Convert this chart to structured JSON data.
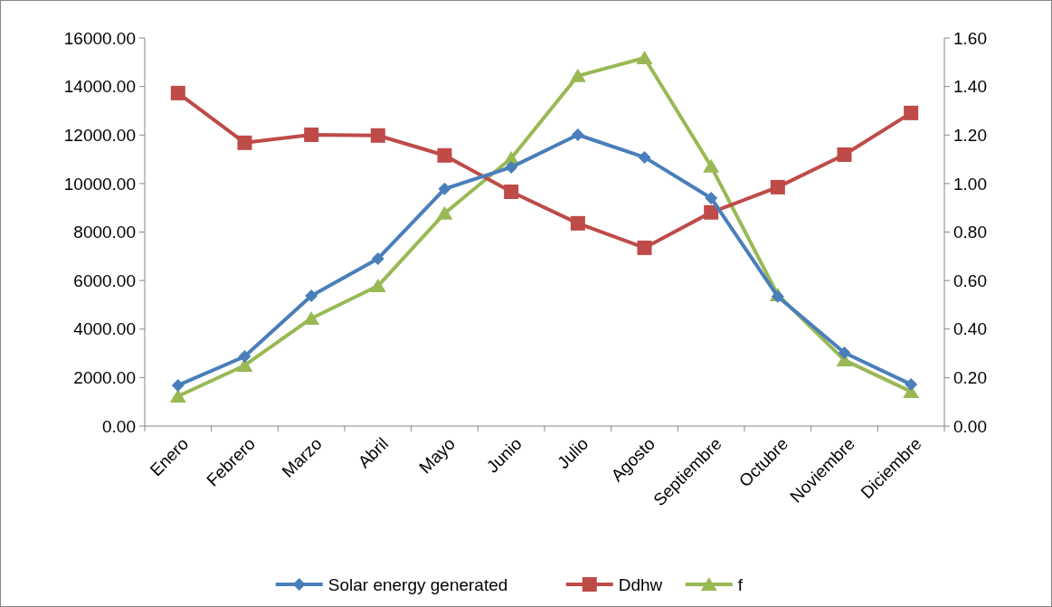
{
  "chart_data": {
    "type": "line",
    "categories": [
      "Enero",
      "Febrero",
      "Marzo",
      "Abril",
      "Mayo",
      "Junio",
      "Julio",
      "Agosto",
      "Septiembre",
      "Octubre",
      "Noviembre",
      "Diciembre"
    ],
    "series": [
      {
        "name": "Solar energy generated",
        "color": "#4a7ebb",
        "marker": "diamond",
        "values": [
          1680,
          2870,
          5370,
          6900,
          9780,
          10670,
          12010,
          11080,
          9400,
          5340,
          3020,
          1720
        ]
      },
      {
        "name": "Ddhw",
        "color": "#be4b48",
        "marker": "square",
        "values": [
          13730,
          11680,
          12010,
          11980,
          11160,
          9660,
          8360,
          7350,
          8810,
          9850,
          11190,
          12910
        ]
      },
      {
        "name": "f",
        "color": "#98b954",
        "marker": "triangle",
        "axis": "y2",
        "values": [
          0.123,
          0.25,
          0.444,
          0.578,
          0.877,
          1.104,
          1.444,
          1.518,
          1.071,
          0.541,
          0.272,
          0.142
        ]
      }
    ],
    "ylim": [
      0,
      16000
    ],
    "yticks": [
      {
        "value": 0,
        "label": "0.00"
      },
      {
        "value": 2000,
        "label": "2000.00"
      },
      {
        "value": 4000,
        "label": "4000.00"
      },
      {
        "value": 6000,
        "label": "6000.00"
      },
      {
        "value": 8000,
        "label": "8000.00"
      },
      {
        "value": 10000,
        "label": "10000.00"
      },
      {
        "value": 12000,
        "label": "12000.00"
      },
      {
        "value": 14000,
        "label": "14000.00"
      },
      {
        "value": 16000,
        "label": "16000.00"
      }
    ],
    "y2lim": [
      0,
      1.6
    ],
    "y2ticks": [
      {
        "value": 0,
        "label": "0.00"
      },
      {
        "value": 0.2,
        "label": "0.20"
      },
      {
        "value": 0.4,
        "label": "0.40"
      },
      {
        "value": 0.6,
        "label": "0.60"
      },
      {
        "value": 0.8,
        "label": "0.80"
      },
      {
        "value": 1,
        "label": "1.00"
      },
      {
        "value": 1.2,
        "label": "1.20"
      },
      {
        "value": 1.4,
        "label": "1.40"
      },
      {
        "value": 1.6,
        "label": "1.60"
      }
    ],
    "grid": false,
    "legend": "bottom"
  }
}
